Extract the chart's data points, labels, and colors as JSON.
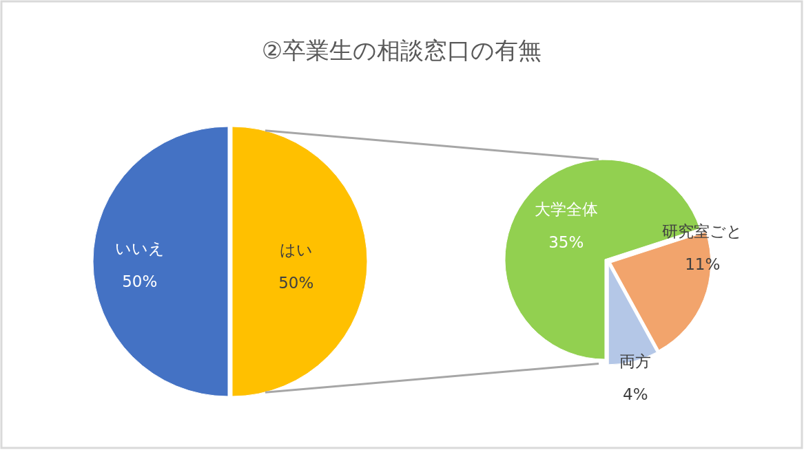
{
  "chart_data": [
    {
      "type": "pie",
      "title": "②卒業生の相談窓口の有無",
      "categories": [
        "いいえ",
        "はい"
      ],
      "values": [
        50,
        50
      ],
      "colors": [
        "#4472c4",
        "#ffc000"
      ],
      "value_labels": [
        "50%",
        "50%"
      ]
    },
    {
      "type": "pie",
      "categories": [
        "大学全体",
        "研究室ごと",
        "両方"
      ],
      "values": [
        35,
        11,
        4
      ],
      "colors": [
        "#92d050",
        "#f2a46c",
        "#b4c7e7"
      ],
      "value_labels": [
        "35%",
        "11%",
        "4%"
      ]
    }
  ]
}
